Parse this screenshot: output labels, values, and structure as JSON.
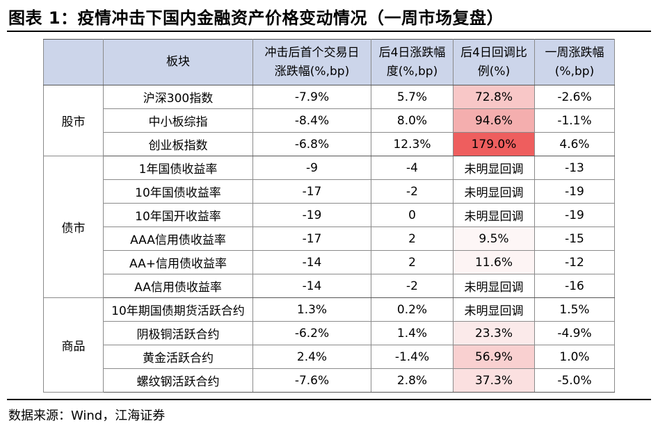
{
  "title": "图表 1：疫情冲击下国内金融资产价格变动情况（一周市场复盘）",
  "table": {
    "headers": [
      "",
      "板块",
      "冲击后首个交易日涨跌幅(%,bp)",
      "后4日涨跌幅度(%,bp)",
      "后4日回调比例(%)",
      "一周涨跌幅(%,bp)"
    ],
    "groups": [
      {
        "sector": "股市",
        "rows": [
          {
            "name": "沪深300指数",
            "first_day": "-7.9%",
            "next4": "5.7%",
            "rebound": "72.8%",
            "rebound_bg": "#f8c7c7",
            "week": "-2.6%"
          },
          {
            "name": "中小板综指",
            "first_day": "-8.4%",
            "next4": "8.0%",
            "rebound": "94.6%",
            "rebound_bg": "#f4aeae",
            "week": "-1.1%"
          },
          {
            "name": "创业板指数",
            "first_day": "-6.8%",
            "next4": "12.3%",
            "rebound": "179.0%",
            "rebound_bg": "#ee5e5e",
            "week": "4.6%"
          }
        ]
      },
      {
        "sector": "债市",
        "rows": [
          {
            "name": "1年国债收益率",
            "first_day": "-9",
            "next4": "-4",
            "rebound": "未明显回调",
            "rebound_bg": "#ffffff",
            "week": "-13"
          },
          {
            "name": "10年国债收益率",
            "first_day": "-17",
            "next4": "-2",
            "rebound": "未明显回调",
            "rebound_bg": "#ffffff",
            "week": "-19"
          },
          {
            "name": "10年国开收益率",
            "first_day": "-19",
            "next4": "0",
            "rebound": "未明显回调",
            "rebound_bg": "#ffffff",
            "week": "-19"
          },
          {
            "name": "AAA信用债收益率",
            "first_day": "-17",
            "next4": "2",
            "rebound": "9.5%",
            "rebound_bg": "#fdf6f6",
            "week": "-15"
          },
          {
            "name": "AA+信用债收益率",
            "first_day": "-14",
            "next4": "2",
            "rebound": "11.6%",
            "rebound_bg": "#fdf4f4",
            "week": "-12"
          },
          {
            "name": "AA信用债收益率",
            "first_day": "-14",
            "next4": "-2",
            "rebound": "未明显回调",
            "rebound_bg": "#ffffff",
            "week": "-16"
          }
        ]
      },
      {
        "sector": "商品",
        "rows": [
          {
            "name": "10年期国债期货活跃合约",
            "first_day": "1.3%",
            "next4": "0.2%",
            "rebound": "未明显回调",
            "rebound_bg": "#ffffff",
            "week": "1.5%"
          },
          {
            "name": "阴极铜活跃合约",
            "first_day": "-6.2%",
            "next4": "1.4%",
            "rebound": "23.3%",
            "rebound_bg": "#fbeaea",
            "week": "-4.9%"
          },
          {
            "name": "黄金活跃合约",
            "first_day": "2.4%",
            "next4": "-1.4%",
            "rebound": "56.9%",
            "rebound_bg": "#f9d0d0",
            "week": "1.0%"
          },
          {
            "name": "螺纹钢活跃合约",
            "first_day": "-7.6%",
            "next4": "2.8%",
            "rebound": "37.3%",
            "rebound_bg": "#fbe0e0",
            "week": "-5.0%"
          }
        ]
      }
    ]
  },
  "source": "数据来源：Wind，江海证券"
}
